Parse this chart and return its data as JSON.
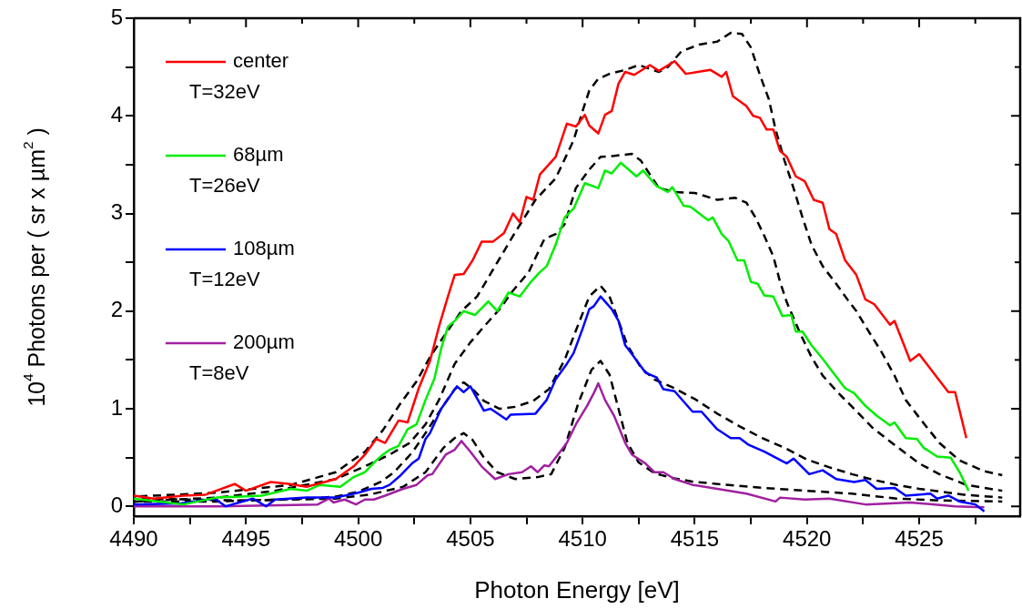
{
  "chart_data": {
    "type": "line",
    "xlabel": "Photon Energy [eV]",
    "ylabel": "10$^{4}$ Photons per ( sr x µm$^{2}$ )",
    "xlim": [
      4490,
      4529.5
    ],
    "ylim": [
      -0.1,
      5
    ],
    "xticks": [
      4490,
      {
        "value": 4492.5,
        "label": null
      },
      4495,
      {
        "value": 4497.5,
        "label": null
      },
      4500,
      {
        "value": 4502.5,
        "label": null
      },
      4505,
      {
        "value": 4507.5,
        "label": null
      },
      4510,
      {
        "value": 4512.5,
        "label": null
      },
      4515,
      {
        "value": 4517.5,
        "label": null
      },
      4520,
      {
        "value": 4522.5,
        "label": null
      },
      4525,
      {
        "value": 4527.5,
        "label": null
      }
    ],
    "yticks": [
      0,
      {
        "value": 0.5,
        "label": null
      },
      1,
      {
        "value": 1.5,
        "label": null
      },
      2,
      {
        "value": 2.5,
        "label": null
      },
      3,
      {
        "value": 3.5,
        "label": null
      },
      4,
      {
        "value": 4.5,
        "label": null
      },
      5
    ],
    "grid": false,
    "legend": "top left",
    "marker": "none",
    "series": [
      {
        "name": "center\nT=32eV",
        "color": "#ff0000",
        "line_style": "solid",
        "x": [
          4490,
          4490.9,
          4492.2,
          4493.2,
          4494.5,
          4495,
          4496.1,
          4496.9,
          4497.7,
          4499,
          4499.8,
          4500.3,
          4500.8,
          4501.2,
          4501.8,
          4502.2,
          4502.7,
          4503.2,
          4503.6,
          4504,
          4504.3,
          4504.7,
          4505.1,
          4505.5,
          4506,
          4506.5,
          4506.9,
          4507.2,
          4507.5,
          4507.8,
          4508.1,
          4508.8,
          4509.3,
          4509.7,
          4510.1,
          4510.3,
          4510.7,
          4511,
          4511.3,
          4511.6,
          4511.9,
          4512.3,
          4513,
          4513.4,
          4514.1,
          4514.6,
          4515.7,
          4516.2,
          4516.4,
          4516.7,
          4517.3,
          4517.6,
          4517.9,
          4518.2,
          4518.5,
          4518.8,
          4519.1,
          4519.5,
          4519.9,
          4520.3,
          4520.7,
          4521,
          4521.3,
          4521.7,
          4522.2,
          4522.6,
          4523,
          4523.7,
          4523.9,
          4524.6,
          4525,
          4525.8,
          4526.3,
          4526.6,
          4527.1
        ],
        "values": [
          0.11,
          0.08,
          0.11,
          0.12,
          0.23,
          0.16,
          0.25,
          0.23,
          0.2,
          0.28,
          0.41,
          0.53,
          0.69,
          0.65,
          0.88,
          0.86,
          1.21,
          1.49,
          1.84,
          2.15,
          2.37,
          2.38,
          2.52,
          2.71,
          2.71,
          2.8,
          3.0,
          2.91,
          3.17,
          3.14,
          3.4,
          3.58,
          3.92,
          3.89,
          4.01,
          3.9,
          3.82,
          4.01,
          4.05,
          4.33,
          4.45,
          4.42,
          4.52,
          4.46,
          4.56,
          4.43,
          4.47,
          4.4,
          4.45,
          4.2,
          4.1,
          4.0,
          3.98,
          3.86,
          3.86,
          3.64,
          3.58,
          3.38,
          3.33,
          3.14,
          3.11,
          2.84,
          2.79,
          2.52,
          2.37,
          2.12,
          2.07,
          1.86,
          1.9,
          1.49,
          1.56,
          1.32,
          1.17,
          1.17,
          0.7
        ]
      },
      {
        "name": "68µm\nT=26eV",
        "color": "#00ee00",
        "line_style": "solid",
        "x": [
          4490,
          4492.2,
          4493.7,
          4495.7,
          4497,
          4497.7,
          4498.3,
          4499.2,
          4499.8,
          4500.3,
          4500.8,
          4501.1,
          4501.4,
          4501.8,
          4502.2,
          4502.6,
          4503,
          4503.4,
          4503.7,
          4504,
          4504.3,
          4504.7,
          4505.2,
          4505.8,
          4506.2,
          4506.7,
          4507.2,
          4507.7,
          4508.1,
          4508.4,
          4508.8,
          4509.2,
          4509.6,
          4510.1,
          4510.7,
          4511,
          4511.3,
          4511.7,
          4512.4,
          4512.7,
          4513.3,
          4513.8,
          4514,
          4514.5,
          4514.8,
          4515.6,
          4515.8,
          4516.2,
          4516.5,
          4516.9,
          4517.2,
          4517.5,
          4517.8,
          4518.1,
          4518.5,
          4518.9,
          4519.3,
          4519.5,
          4519.8,
          4520.2,
          4520.7,
          4521.1,
          4521.7,
          4522.1,
          4522.6,
          4523.1,
          4523.7,
          4523.9,
          4524.4,
          4524.9,
          4525.2,
          4525.8,
          4526.4,
          4526.8,
          4527.2
        ],
        "values": [
          0.08,
          0.02,
          0.09,
          0.11,
          0.18,
          0.16,
          0.22,
          0.2,
          0.3,
          0.35,
          0.47,
          0.53,
          0.58,
          0.62,
          0.79,
          0.84,
          1.09,
          1.31,
          1.62,
          1.84,
          1.9,
          2.0,
          1.96,
          2.1,
          2.0,
          2.19,
          2.15,
          2.3,
          2.4,
          2.46,
          2.68,
          2.96,
          3.05,
          3.31,
          3.26,
          3.44,
          3.41,
          3.52,
          3.38,
          3.44,
          3.28,
          3.22,
          3.27,
          3.08,
          3.07,
          2.93,
          2.96,
          2.79,
          2.72,
          2.52,
          2.52,
          2.3,
          2.28,
          2.16,
          2.15,
          1.95,
          1.96,
          1.79,
          1.79,
          1.65,
          1.51,
          1.39,
          1.21,
          1.16,
          1.03,
          0.93,
          0.83,
          0.86,
          0.7,
          0.69,
          0.6,
          0.51,
          0.5,
          0.35,
          0.16
        ]
      },
      {
        "name": "108µm\nT=12eV",
        "color": "#0000ff",
        "line_style": "solid",
        "x": [
          4490,
          4492.1,
          4493.6,
          4494.1,
          4495.3,
          4495.9,
          4496.3,
          4497.7,
          4499,
          4500,
          4500.6,
          4501.1,
          4501.4,
          4501.9,
          4502.4,
          4502.7,
          4503,
          4503.2,
          4503.7,
          4504.4,
          4504.7,
          4505,
          4505.6,
          4505.9,
          4506.6,
          4506.8,
          4507.9,
          4508.4,
          4508.8,
          4509.3,
          4509.6,
          4510,
          4510.3,
          4510.5,
          4510.8,
          4511.3,
          4511.6,
          4511.9,
          4512.2,
          4512.8,
          4513.3,
          4513.6,
          4514.1,
          4514.9,
          4515.3,
          4516,
          4516.6,
          4517,
          4517.4,
          4518.1,
          4518.6,
          4519.1,
          4519.4,
          4520.1,
          4520.7,
          4521.3,
          4522.1,
          4522.6,
          4523.1,
          4523.9,
          4524.4,
          4525.5,
          4525.8,
          4526.3,
          4526.8,
          4527.5,
          4527.9
        ],
        "values": [
          0.02,
          0.03,
          0.08,
          0,
          0.08,
          0,
          0.07,
          0.09,
          0.09,
          0.14,
          0.18,
          0.19,
          0.22,
          0.32,
          0.44,
          0.49,
          0.69,
          0.75,
          1.0,
          1.23,
          1.17,
          1.23,
          0.98,
          1.0,
          0.89,
          0.94,
          0.95,
          1.09,
          1.3,
          1.46,
          1.57,
          1.82,
          2.02,
          2.05,
          2.15,
          2.02,
          1.9,
          1.65,
          1.56,
          1.37,
          1.32,
          1.2,
          1.18,
          0.97,
          0.97,
          0.79,
          0.7,
          0.7,
          0.63,
          0.56,
          0.5,
          0.44,
          0.49,
          0.33,
          0.37,
          0.28,
          0.25,
          0.27,
          0.18,
          0.19,
          0.11,
          0.13,
          0.08,
          0.11,
          0.05,
          0.02,
          -0.05
        ]
      },
      {
        "name": "200µm\nT=8eV",
        "color": "#a020a0",
        "line_style": "solid",
        "x": [
          4490,
          4493.7,
          4498.2,
          4498.7,
          4498.9,
          4499.4,
          4499.9,
          4500.3,
          4500.7,
          4501.2,
          4502,
          4502.6,
          4503.1,
          4503.3,
          4503.9,
          4504.3,
          4504.6,
          4505,
          4505.5,
          4506.1,
          4506.7,
          4507.3,
          4507.7,
          4508,
          4508.3,
          4508.5,
          4508.8,
          4509.3,
          4509.7,
          4510.2,
          4510.5,
          4510.7,
          4511,
          4511.4,
          4511.9,
          4512.2,
          4512.8,
          4513.2,
          4513.6,
          4514.1,
          4514.9,
          4516,
          4517.3,
          4518.6,
          4518.8,
          4519.9,
          4521,
          4522.6,
          4524.6,
          4526.6,
          4527.9
        ],
        "values": [
          0,
          0,
          0.02,
          0.08,
          0.04,
          0.07,
          0.02,
          0.07,
          0.07,
          0.11,
          0.18,
          0.22,
          0.32,
          0.33,
          0.53,
          0.58,
          0.67,
          0.56,
          0.41,
          0.28,
          0.33,
          0.35,
          0.41,
          0.35,
          0.42,
          0.41,
          0.5,
          0.65,
          0.84,
          1.03,
          1.16,
          1.26,
          1.09,
          0.93,
          0.65,
          0.53,
          0.44,
          0.35,
          0.35,
          0.28,
          0.22,
          0.18,
          0.13,
          0.05,
          0.09,
          0.07,
          0.08,
          0.02,
          0.04,
          0,
          -0.01
        ]
      },
      {
        "color": "#000000",
        "line_style": "dashed",
        "x": [
          4490,
          4493.7,
          4497,
          4499,
          4500.3,
          4501.1,
          4501.9,
          4502.6,
          4503.2,
          4503.9,
          4504.6,
          4505.3,
          4506.1,
          4506.9,
          4507.9,
          4508.8,
          4509.6,
          4510,
          4510.3,
          4510.7,
          4511.2,
          4511.9,
          4512.5,
          4513.4,
          4513.8,
          4514.4,
          4515.2,
          4516,
          4516.6,
          4517.1,
          4517.5,
          4517.9,
          4518.3,
          4518.6,
          4519,
          4519.4,
          4519.8,
          4520.2,
          4520.7,
          4521.3,
          4521.8,
          4522.2,
          4522.7,
          4523.3,
          4523.9,
          4524.4,
          4525.1,
          4525.9,
          4526.8,
          4527.9,
          4528.7
        ],
        "values": [
          0.1,
          0.14,
          0.22,
          0.35,
          0.56,
          0.78,
          1.06,
          1.28,
          1.53,
          1.77,
          2.0,
          2.15,
          2.46,
          2.77,
          3.14,
          3.36,
          3.75,
          4.05,
          4.26,
          4.38,
          4.43,
          4.47,
          4.52,
          4.45,
          4.5,
          4.66,
          4.73,
          4.76,
          4.85,
          4.84,
          4.7,
          4.42,
          4.17,
          3.86,
          3.54,
          3.26,
          2.96,
          2.68,
          2.46,
          2.28,
          2.12,
          2.0,
          1.81,
          1.59,
          1.34,
          1.09,
          0.88,
          0.65,
          0.47,
          0.36,
          0.32
        ]
      },
      {
        "color": "#000000",
        "line_style": "dashed",
        "x": [
          4490,
          4493.7,
          4496.3,
          4499,
          4500.3,
          4501.4,
          4502.3,
          4503,
          4503.6,
          4504.3,
          4505,
          4505.6,
          4506.3,
          4506.9,
          4507.6,
          4508.3,
          4508.8,
          4509.2,
          4509.7,
          4510.3,
          4510.8,
          4511.4,
          4512.2,
          4512.6,
          4513,
          4513.4,
          4514.1,
          4515,
          4516,
          4516.8,
          4517.3,
          4517.7,
          4518.1,
          4518.5,
          4518.8,
          4519.1,
          4519.7,
          4520.2,
          4520.7,
          4521.4,
          4522.1,
          4522.9,
          4523.9,
          4525,
          4525.9,
          4527.1,
          4528.7
        ],
        "values": [
          0.05,
          0.09,
          0.16,
          0.28,
          0.41,
          0.53,
          0.65,
          0.84,
          1.09,
          1.46,
          1.68,
          1.84,
          2.02,
          2.21,
          2.4,
          2.74,
          2.79,
          2.89,
          3.26,
          3.45,
          3.58,
          3.59,
          3.61,
          3.54,
          3.4,
          3.26,
          3.22,
          3.21,
          3.14,
          3.16,
          3.11,
          2.96,
          2.77,
          2.56,
          2.3,
          2.09,
          1.77,
          1.53,
          1.34,
          1.16,
          1.0,
          0.81,
          0.63,
          0.44,
          0.33,
          0.22,
          0.16
        ]
      },
      {
        "color": "#000000",
        "line_style": "dashed",
        "x": [
          4490,
          4493.7,
          4497.7,
          4499,
          4500,
          4501,
          4501.6,
          4502.4,
          4503,
          4503.7,
          4504.3,
          4504.7,
          4505.1,
          4505.6,
          4506.3,
          4507,
          4507.8,
          4508.5,
          4509.2,
          4509.7,
          4510.3,
          4510.8,
          4511.2,
          4511.6,
          4512,
          4512.6,
          4513.2,
          4514,
          4515,
          4516,
          4517,
          4518,
          4519,
          4520,
          4521,
          4522,
          4523,
          4524,
          4525,
          4526,
          4527,
          4528.7
        ],
        "values": [
          0.05,
          0.05,
          0.08,
          0.1,
          0.15,
          0.25,
          0.35,
          0.55,
          0.75,
          1.0,
          1.2,
          1.27,
          1.2,
          1.08,
          1.0,
          1.02,
          1.08,
          1.2,
          1.5,
          1.8,
          2.15,
          2.26,
          2.15,
          1.9,
          1.65,
          1.42,
          1.3,
          1.22,
          1.1,
          0.95,
          0.82,
          0.7,
          0.6,
          0.48,
          0.4,
          0.33,
          0.27,
          0.22,
          0.18,
          0.15,
          0.12,
          0.09
        ]
      },
      {
        "color": "#000000",
        "line_style": "dashed",
        "x": [
          4490,
          4495,
          4499,
          4500.5,
          4502,
          4503,
          4503.8,
          4504.3,
          4504.7,
          4505.1,
          4505.6,
          4506.2,
          4507,
          4508,
          4508.6,
          4509.2,
          4509.8,
          4510.4,
          4510.8,
          4511.2,
          4511.6,
          4512,
          4512.5,
          4513.2,
          4514,
          4515,
          4516.5,
          4518,
          4520,
          4522,
          4524,
          4526,
          4528.7
        ],
        "values": [
          0.08,
          0.06,
          0.08,
          0.12,
          0.2,
          0.35,
          0.6,
          0.7,
          0.75,
          0.68,
          0.5,
          0.35,
          0.28,
          0.3,
          0.33,
          0.6,
          1.05,
          1.4,
          1.49,
          1.35,
          1.0,
          0.65,
          0.45,
          0.34,
          0.29,
          0.25,
          0.22,
          0.19,
          0.16,
          0.13,
          0.08,
          0.06,
          0.05
        ]
      }
    ]
  }
}
